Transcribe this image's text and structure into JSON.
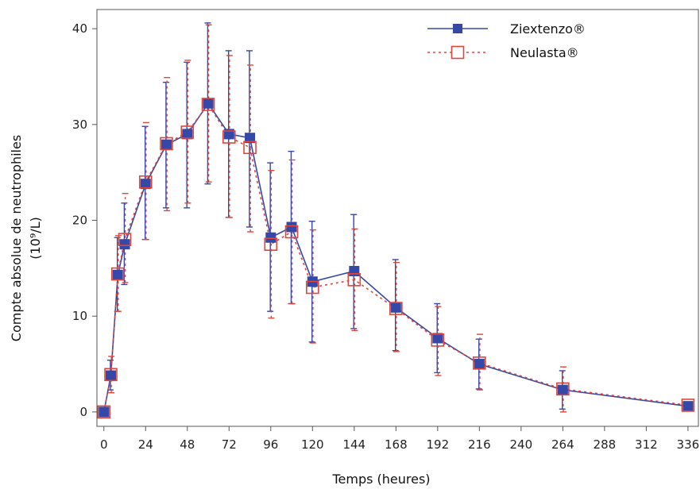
{
  "chart_data": {
    "type": "line",
    "xlabel": "Temps (heures)",
    "ylabel_line1": "Compte absolue de neutrophiles",
    "ylabel_line2": "(10⁹/L)",
    "xlim": [
      -4,
      342
    ],
    "ylim": [
      -1.5,
      42
    ],
    "x_ticks": [
      0,
      24,
      48,
      72,
      96,
      120,
      144,
      168,
      192,
      216,
      240,
      264,
      288,
      312,
      336
    ],
    "y_ticks": [
      0,
      10,
      20,
      30,
      40
    ],
    "grid": false,
    "legend_position": "top-right",
    "series": [
      {
        "name": "Ziextenzo®",
        "color": "#3548a8",
        "marker": "filled-square",
        "line": "solid",
        "points": [
          {
            "x": 0,
            "y": 0,
            "lo": 0,
            "hi": 0
          },
          {
            "x": 4,
            "y": 3.8,
            "lo": 2.3,
            "hi": 5.4
          },
          {
            "x": 8,
            "y": 14.3,
            "lo": 10.5,
            "hi": 18.2
          },
          {
            "x": 12,
            "y": 17.5,
            "lo": 13.3,
            "hi": 21.8
          },
          {
            "x": 24,
            "y": 23.8,
            "lo": 18.0,
            "hi": 29.8
          },
          {
            "x": 36,
            "y": 27.9,
            "lo": 21.3,
            "hi": 34.4
          },
          {
            "x": 48,
            "y": 29.0,
            "lo": 21.3,
            "hi": 36.5
          },
          {
            "x": 60,
            "y": 32.2,
            "lo": 23.8,
            "hi": 40.6
          },
          {
            "x": 72,
            "y": 29.0,
            "lo": 20.3,
            "hi": 37.7
          },
          {
            "x": 84,
            "y": 28.6,
            "lo": 19.3,
            "hi": 37.7
          },
          {
            "x": 96,
            "y": 18.2,
            "lo": 10.5,
            "hi": 26.0
          },
          {
            "x": 108,
            "y": 19.3,
            "lo": 11.3,
            "hi": 27.2
          },
          {
            "x": 120,
            "y": 13.6,
            "lo": 7.3,
            "hi": 19.9
          },
          {
            "x": 144,
            "y": 14.7,
            "lo": 8.7,
            "hi": 20.6
          },
          {
            "x": 168,
            "y": 10.9,
            "lo": 6.4,
            "hi": 15.9
          },
          {
            "x": 192,
            "y": 7.7,
            "lo": 4.1,
            "hi": 11.3
          },
          {
            "x": 216,
            "y": 5.0,
            "lo": 2.4,
            "hi": 7.6
          },
          {
            "x": 264,
            "y": 2.3,
            "lo": 0.3,
            "hi": 4.3
          },
          {
            "x": 336,
            "y": 0.6,
            "lo": 0.3,
            "hi": 0.9
          }
        ]
      },
      {
        "name": "Neulasta®",
        "color": "#e0453a",
        "marker": "open-square",
        "line": "dotted",
        "points": [
          {
            "x": 0,
            "y": 0,
            "lo": 0,
            "hi": 0
          },
          {
            "x": 4,
            "y": 3.9,
            "lo": 2.0,
            "hi": 5.8
          },
          {
            "x": 8,
            "y": 14.4,
            "lo": 10.5,
            "hi": 18.4
          },
          {
            "x": 12,
            "y": 18.0,
            "lo": 13.5,
            "hi": 22.8
          },
          {
            "x": 24,
            "y": 24.0,
            "lo": 18.0,
            "hi": 30.2
          },
          {
            "x": 36,
            "y": 28.0,
            "lo": 21.0,
            "hi": 34.9
          },
          {
            "x": 48,
            "y": 29.2,
            "lo": 21.8,
            "hi": 36.7
          },
          {
            "x": 60,
            "y": 32.1,
            "lo": 24.0,
            "hi": 40.4
          },
          {
            "x": 72,
            "y": 28.7,
            "lo": 20.3,
            "hi": 37.2
          },
          {
            "x": 84,
            "y": 27.6,
            "lo": 18.8,
            "hi": 36.2
          },
          {
            "x": 96,
            "y": 17.5,
            "lo": 9.8,
            "hi": 25.2
          },
          {
            "x": 108,
            "y": 18.8,
            "lo": 11.3,
            "hi": 26.3
          },
          {
            "x": 120,
            "y": 13.0,
            "lo": 7.2,
            "hi": 19.0
          },
          {
            "x": 144,
            "y": 13.8,
            "lo": 8.5,
            "hi": 19.1
          },
          {
            "x": 168,
            "y": 10.8,
            "lo": 6.3,
            "hi": 15.6
          },
          {
            "x": 192,
            "y": 7.5,
            "lo": 3.8,
            "hi": 11.0
          },
          {
            "x": 216,
            "y": 5.1,
            "lo": 2.3,
            "hi": 8.1
          },
          {
            "x": 264,
            "y": 2.4,
            "lo": 0.0,
            "hi": 4.7
          },
          {
            "x": 336,
            "y": 0.7,
            "lo": 0.4,
            "hi": 1.0
          }
        ]
      }
    ]
  }
}
